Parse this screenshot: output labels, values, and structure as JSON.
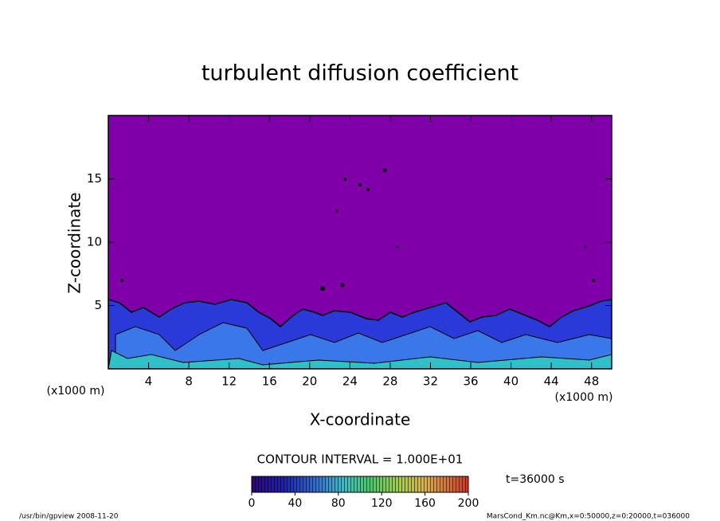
{
  "chart_data": {
    "type": "contour",
    "title": "turbulent diffusion coefficient",
    "xlabel": "X-coordinate",
    "ylabel": "Z-coordinate",
    "xunit": "(x1000 m)",
    "yunit": "(x1000 m)",
    "xlim": [
      0,
      50
    ],
    "xticks": [
      4,
      8,
      12,
      16,
      20,
      24,
      28,
      32,
      36,
      40,
      44,
      48
    ],
    "ylim": [
      0,
      20
    ],
    "yticks": [
      5,
      10,
      15
    ],
    "contour_interval": "CONTOUR INTERVAL = 1.000E+01",
    "clim": [
      0,
      200
    ],
    "cticks": [
      0,
      40,
      80,
      120,
      160,
      200
    ],
    "time": "t=36000 s",
    "footer_left": "/usr/bin/gpview  2008-11-20",
    "footer_right": "MarsCond_Km.nc@Km,x=0:50000,z=0:20000,t=036000"
  }
}
